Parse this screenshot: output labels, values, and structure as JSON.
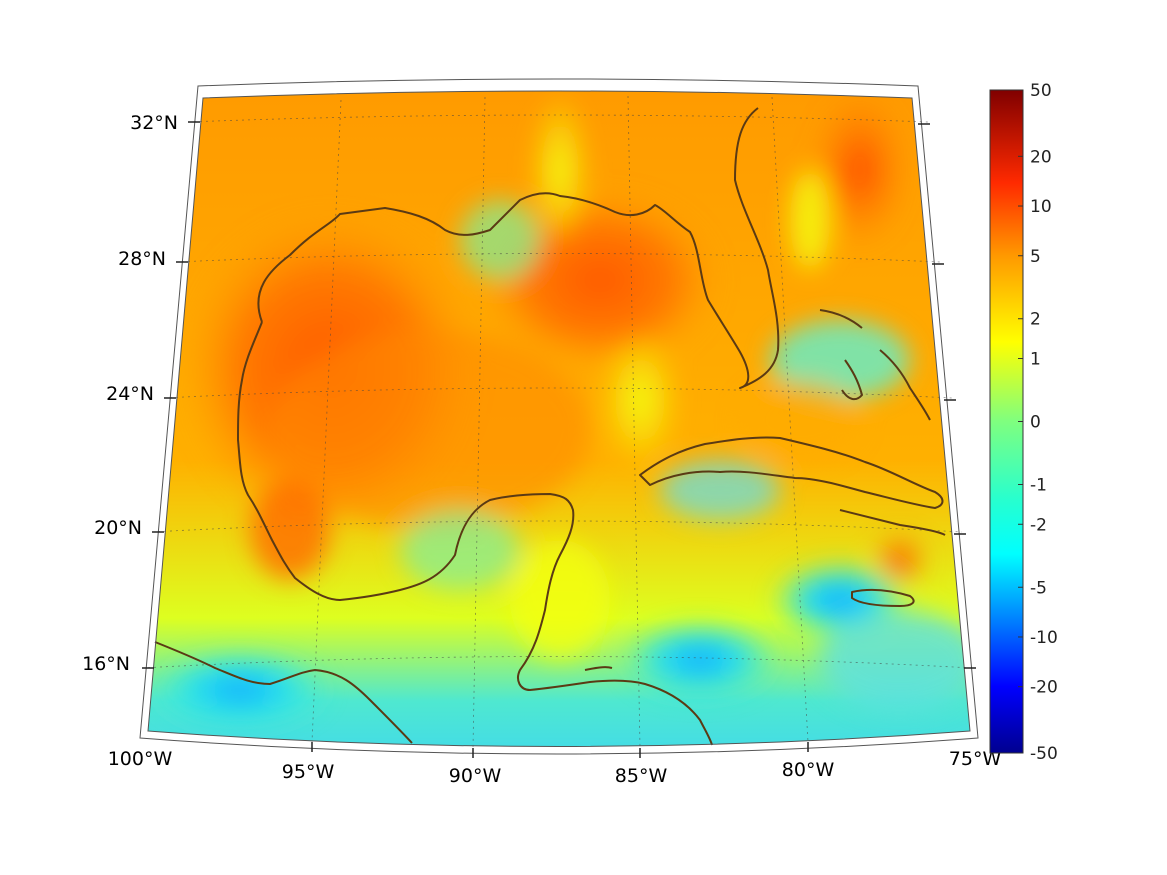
{
  "map": {
    "longitude_labels": [
      {
        "lon": -100,
        "text": "100°W"
      },
      {
        "lon": -95,
        "text": "95°W"
      },
      {
        "lon": -90,
        "text": "90°W"
      },
      {
        "lon": -85,
        "text": "85°W"
      },
      {
        "lon": -80,
        "text": "80°W"
      },
      {
        "lon": -75,
        "text": "75°W"
      }
    ],
    "latitude_labels": [
      {
        "lat": 32,
        "text": "32°N"
      },
      {
        "lat": 28,
        "text": "28°N"
      },
      {
        "lat": 24,
        "text": "24°N"
      },
      {
        "lat": 20,
        "text": "20°N"
      },
      {
        "lat": 16,
        "text": "16°N"
      }
    ],
    "extent": {
      "lon": [
        -100,
        -75
      ],
      "lat": [
        14,
        33
      ]
    },
    "projection": "conic",
    "gridlines": true,
    "coastline_color": "#5a3a14"
  },
  "colorbar": {
    "ticks": [
      {
        "value": 50,
        "text": "50"
      },
      {
        "value": 20,
        "text": "20"
      },
      {
        "value": 10,
        "text": "10"
      },
      {
        "value": 5,
        "text": "5"
      },
      {
        "value": 2,
        "text": "2"
      },
      {
        "value": 1,
        "text": "1"
      },
      {
        "value": 0,
        "text": "0"
      },
      {
        "value": -1,
        "text": "-1"
      },
      {
        "value": -2,
        "text": "-2"
      },
      {
        "value": -5,
        "text": "-5"
      },
      {
        "value": -10,
        "text": "-10"
      },
      {
        "value": -20,
        "text": "-20"
      },
      {
        "value": -50,
        "text": "-50"
      }
    ],
    "range": [
      -50,
      50
    ],
    "colormap": "jet",
    "colors": [
      "#00008f",
      "#0000ff",
      "#00ffff",
      "#ffff00",
      "#ff0000",
      "#800000"
    ],
    "placement": "right"
  }
}
